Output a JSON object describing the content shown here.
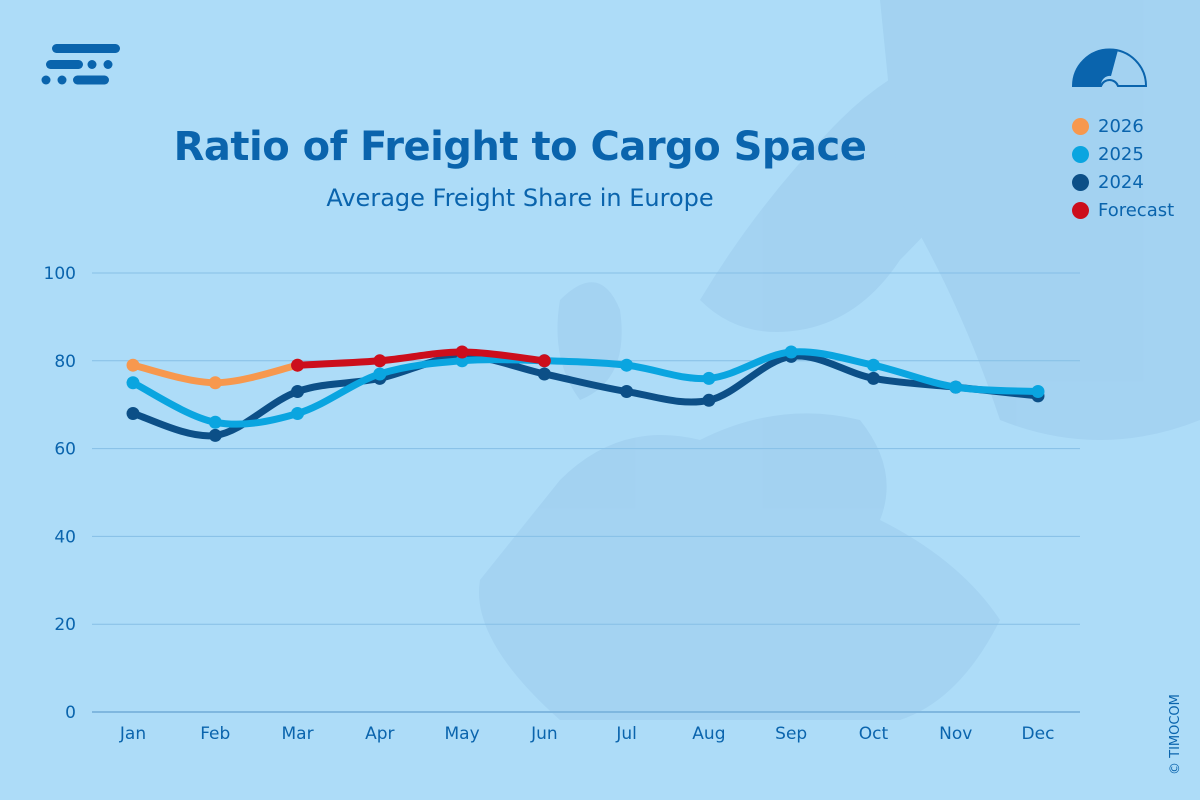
{
  "brand": {
    "copyright": "© TIMOCOM",
    "logo_icon": "timocom-logo-icon",
    "gauge_icon": "gauge-icon"
  },
  "colors": {
    "2026": "#f7984e",
    "2025": "#0aa5e0",
    "2024": "#0c4f87",
    "Forecast": "#cc0e1c",
    "text": "#0a64ad",
    "background": "#addcf8"
  },
  "chart_data": {
    "type": "line",
    "title": "Ratio of Freight to Cargo Space",
    "subtitle": "Average Freight Share in Europe",
    "xlabel": "",
    "ylabel": "",
    "categories": [
      "Jan",
      "Feb",
      "Mar",
      "Apr",
      "May",
      "Jun",
      "Jul",
      "Aug",
      "Sep",
      "Oct",
      "Nov",
      "Dec"
    ],
    "ylim": [
      0,
      100
    ],
    "yticks": [
      0,
      20,
      40,
      60,
      80,
      100
    ],
    "grid": true,
    "legend_position": "top-right",
    "series": [
      {
        "name": "2024",
        "values": [
          68,
          63,
          73,
          76,
          81,
          77,
          73,
          71,
          81,
          76,
          74,
          72
        ]
      },
      {
        "name": "2025",
        "values": [
          75,
          66,
          68,
          77,
          80,
          80,
          79,
          76,
          82,
          79,
          74,
          73
        ]
      },
      {
        "name": "2026",
        "values": [
          79,
          75,
          79,
          null,
          null,
          null,
          null,
          null,
          null,
          null,
          null,
          null
        ]
      },
      {
        "name": "Forecast",
        "values": [
          null,
          null,
          79,
          80,
          82,
          80,
          null,
          null,
          null,
          null,
          null,
          null
        ]
      }
    ]
  }
}
